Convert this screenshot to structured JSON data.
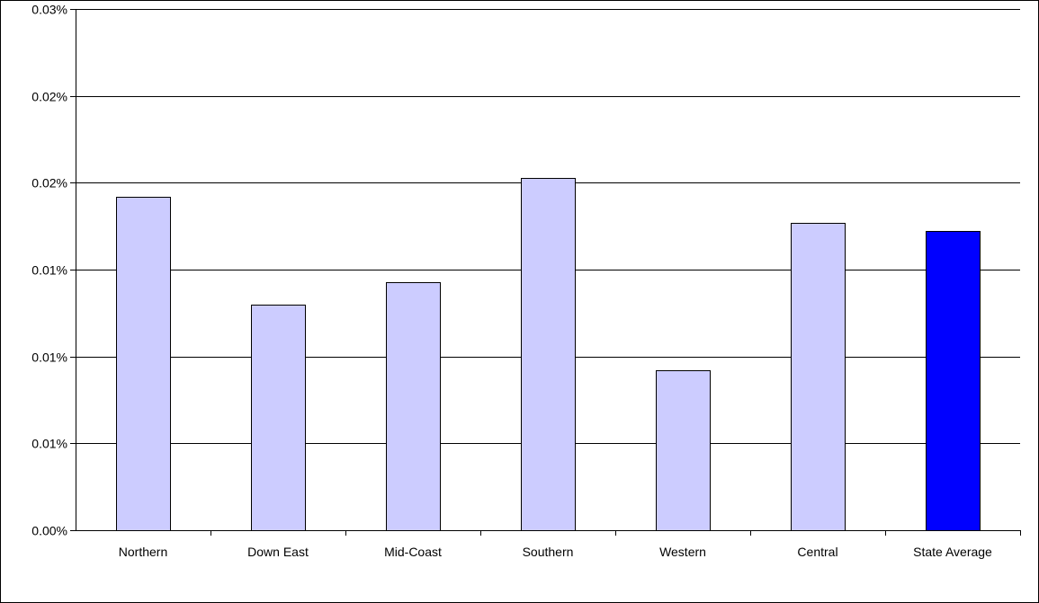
{
  "chart_data": {
    "type": "bar",
    "categories": [
      "Northern",
      "Down East",
      "Mid-Coast",
      "Southern",
      "Western",
      "Central",
      "State Average"
    ],
    "values": [
      0.0192,
      0.013,
      0.0143,
      0.0203,
      0.0092,
      0.0177,
      0.0172
    ],
    "y_tick_labels": [
      "0.00%",
      "0.01%",
      "0.01%",
      "0.01%",
      "0.02%",
      "0.02%",
      "0.03%"
    ],
    "ylim": [
      0,
      0.03
    ],
    "ytick_step": 0.005,
    "grid": true,
    "legend": "none",
    "colors": {
      "bar": "#ccccff",
      "highlight_bar": "#0000ff",
      "outline": "#000000",
      "grid": "#000000"
    },
    "highlight_category": "State Average"
  }
}
